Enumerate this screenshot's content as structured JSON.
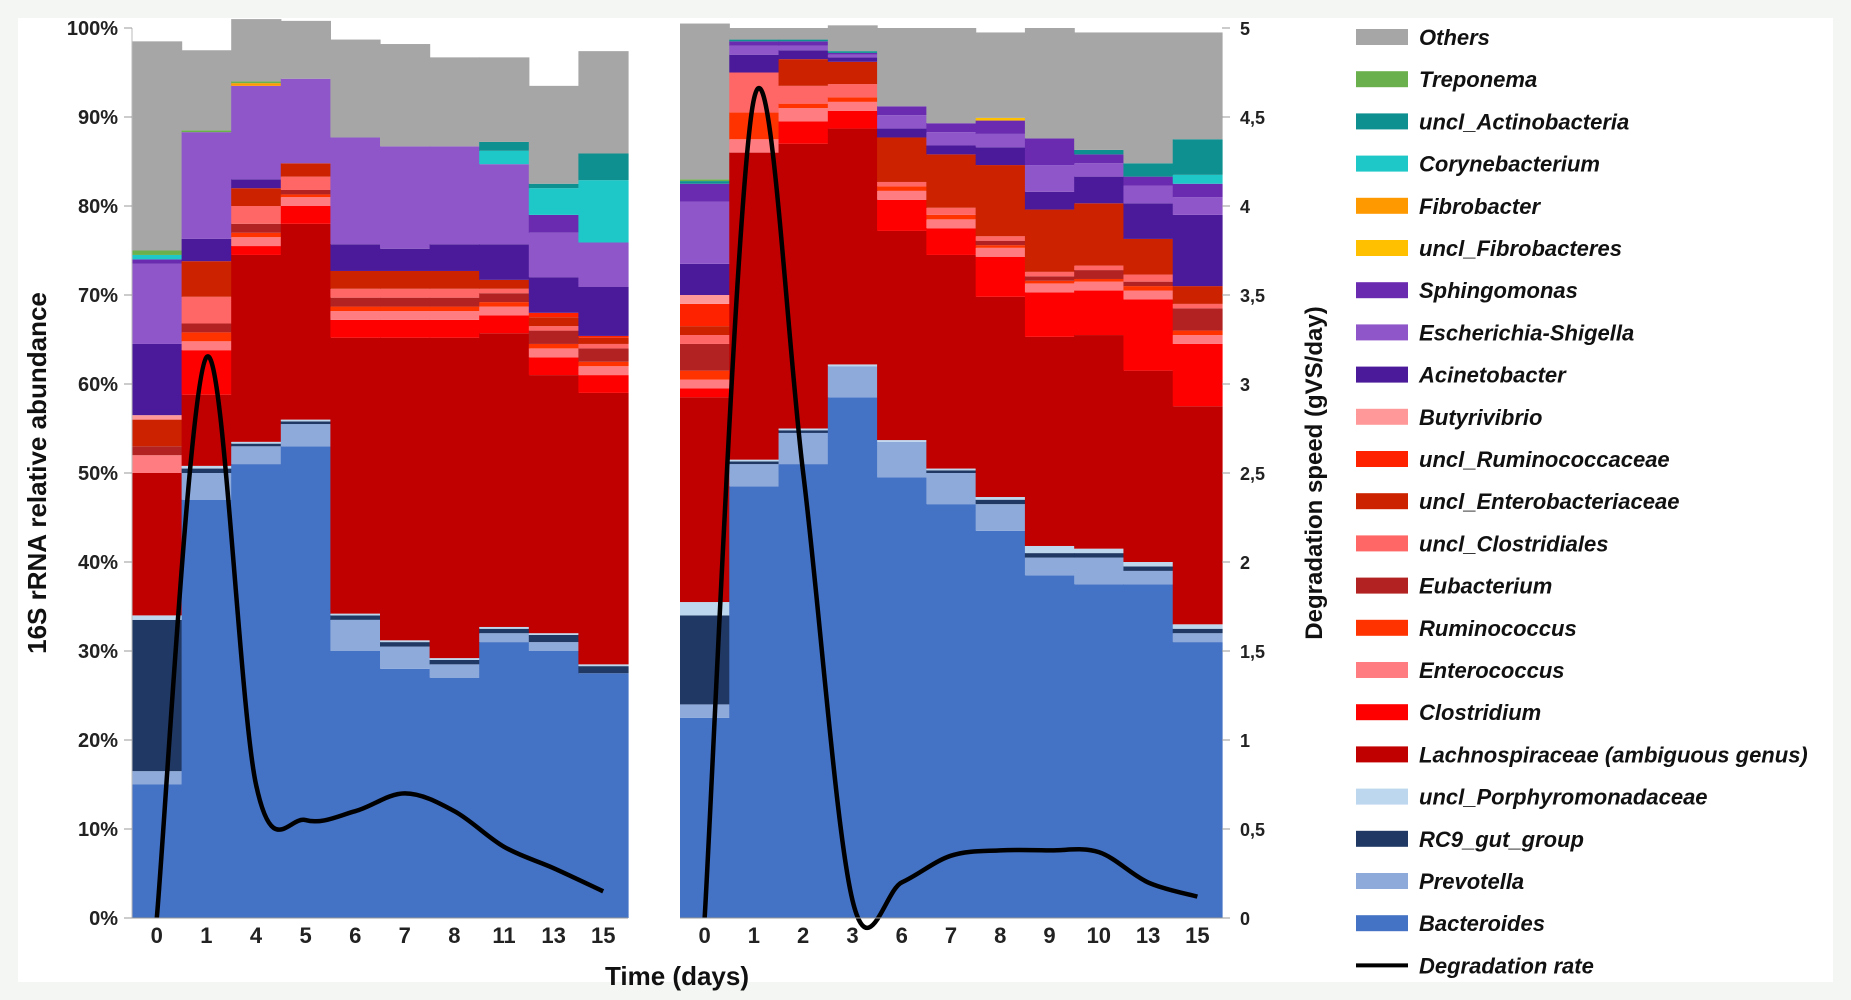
{
  "chart_data": {
    "type": "area",
    "subtype": "stacked-step-area with line overlay",
    "xlabel": "Time (days)",
    "ylabel": "16S rRNA relative abundance",
    "y2label": "Degradation speed (gVS/day)",
    "ylim": [
      0,
      100
    ],
    "y2lim": [
      0,
      5
    ],
    "yticks": [
      "0%",
      "10%",
      "20%",
      "30%",
      "40%",
      "50%",
      "60%",
      "70%",
      "80%",
      "90%",
      "100%"
    ],
    "y2ticks": [
      "0",
      "0,5",
      "1",
      "1,5",
      "2",
      "2,5",
      "3",
      "3,5",
      "4",
      "4,5",
      "5"
    ],
    "grid": false,
    "legend_position": "right",
    "colors": {
      "Bacteroides": "#4472c4",
      "Prevotella": "#8eaadb",
      "RC9_gut_group": "#1f3864",
      "uncl_Porphyromonadaceae": "#bdd7ee",
      "Lachnospiraceae (ambiguous genus)": "#c00000",
      "Clostridium": "#ff0000",
      "Enterococcus": "#ff7c80",
      "Ruminococcus": "#ff3300",
      "Eubacterium": "#b22222",
      "uncl_Clostridiales": "#ff6666",
      "uncl_Enterobacteriaceae": "#cc2200",
      "uncl_Ruminococcaceae": "#ff2200",
      "Butyrivibrio": "#ff9999",
      "Acinetobacter": "#4b1a9a",
      "Escherichia-Shigella": "#8e56c8",
      "Sphingomonas": "#6a2bb0",
      "uncl_Fibrobacteres": "#ffc000",
      "Fibrobacter": "#ff9900",
      "Corynebacterium": "#1ec8c8",
      "uncl_Actinobacteria": "#0e9090",
      "Treponema": "#6ab04c",
      "Others": "#a6a6a6",
      "Degradation rate": "#000000"
    },
    "legend": [
      "Others",
      "Treponema",
      "uncl_Actinobacteria",
      "Corynebacterium",
      "Fibrobacter",
      "uncl_Fibrobacteres",
      "Sphingomonas",
      "Escherichia-Shigella",
      "Acinetobacter",
      "Butyrivibrio",
      "uncl_Ruminococcaceae",
      "uncl_Enterobacteriaceae",
      "uncl_Clostridiales",
      "Eubacterium",
      "Ruminococcus",
      "Enterococcus",
      "Clostridium",
      "Lachnospiraceae (ambiguous genus)",
      "uncl_Porphyromonadaceae",
      "RC9_gut_group",
      "Prevotella",
      "Bacteroides",
      "Degradation rate"
    ],
    "panels": [
      {
        "categories": [
          "0",
          "1",
          "4",
          "5",
          "6",
          "7",
          "8",
          "11",
          "13",
          "15"
        ],
        "series": [
          {
            "name": "Bacteroides",
            "values": [
              15,
              47,
              51,
              53,
              30,
              28,
              27,
              31,
              30,
              27.5
            ]
          },
          {
            "name": "Prevotella",
            "values": [
              1.5,
              3,
              2,
              2.5,
              3.5,
              2.5,
              1.5,
              1,
              1,
              0
            ]
          },
          {
            "name": "RC9_gut_group",
            "values": [
              17,
              0.5,
              0.3,
              0.3,
              0.5,
              0.5,
              0.5,
              0.5,
              0.8,
              0.8
            ]
          },
          {
            "name": "uncl_Porphyromonadaceae",
            "values": [
              0.5,
              0.3,
              0.2,
              0.2,
              0.2,
              0.2,
              0.2,
              0.2,
              0.2,
              0.2
            ]
          },
          {
            "name": "Lachnospiraceae (ambiguous genus)",
            "values": [
              16,
              8,
              21,
              22,
              31,
              34,
              36,
              33,
              29,
              30.5
            ]
          },
          {
            "name": "Clostridium",
            "values": [
              0,
              5,
              1,
              2,
              2,
              2,
              2,
              2,
              2,
              2
            ]
          },
          {
            "name": "Enterococcus",
            "values": [
              2,
              1,
              1,
              1,
              1,
              1,
              1,
              1,
              1,
              1
            ]
          },
          {
            "name": "Ruminococcus",
            "values": [
              0,
              1,
              0.5,
              0.3,
              0.5,
              0.5,
              0.5,
              0.5,
              0.5,
              0.5
            ]
          },
          {
            "name": "Eubacterium",
            "values": [
              1,
              1,
              1,
              0.5,
              1,
              1,
              1,
              1,
              1.5,
              1.5
            ]
          },
          {
            "name": "uncl_Clostridiales",
            "values": [
              0,
              3,
              2,
              1.5,
              1,
              1,
              1,
              0.5,
              0.5,
              0.5
            ]
          },
          {
            "name": "uncl_Enterobacteriaceae",
            "values": [
              3,
              4,
              2,
              1.5,
              2,
              2,
              2,
              1,
              1,
              0.7
            ]
          },
          {
            "name": "uncl_Ruminococcaceae",
            "values": [
              0,
              0,
              0,
              0,
              0,
              0,
              0,
              0,
              0.5,
              0.2
            ]
          },
          {
            "name": "Butyrivibrio",
            "values": [
              0.5,
              0,
              0,
              0,
              0,
              0,
              0,
              0,
              0,
              0
            ]
          },
          {
            "name": "Acinetobacter",
            "values": [
              8,
              2.5,
              1,
              0,
              3,
              2.5,
              3,
              4,
              4,
              5.5
            ]
          },
          {
            "name": "Escherichia-Shigella",
            "values": [
              9,
              12,
              10.5,
              9.5,
              12,
              11.5,
              11,
              9,
              5,
              5
            ]
          },
          {
            "name": "Sphingomonas",
            "values": [
              0.5,
              0,
              0,
              0,
              0,
              0,
              0,
              0,
              2,
              0
            ]
          },
          {
            "name": "uncl_Fibrobacteres",
            "values": [
              0,
              0,
              0,
              0,
              0,
              0,
              0,
              0,
              0,
              0
            ]
          },
          {
            "name": "Fibrobacter",
            "values": [
              0,
              0,
              0.3,
              0,
              0,
              0,
              0,
              0,
              0,
              0
            ]
          },
          {
            "name": "Corynebacterium",
            "values": [
              0.5,
              0,
              0,
              0,
              0,
              0,
              0,
              1.5,
              3,
              7
            ]
          },
          {
            "name": "uncl_Actinobacteria",
            "values": [
              0,
              0,
              0,
              0,
              0,
              0,
              0,
              1,
              0.5,
              3
            ]
          },
          {
            "name": "Treponema",
            "values": [
              0.5,
              0.2,
              0.2,
              0,
              0,
              0,
              0,
              0,
              0,
              0
            ]
          },
          {
            "name": "Others",
            "values": [
              23.5,
              9,
              7,
              6.5,
              11,
              11.5,
              10,
              9.5,
              11,
              11.5
            ]
          }
        ],
        "degradation_rate": [
          0,
          3.15,
          0.75,
          0.55,
          0.6,
          0.7,
          0.6,
          0.4,
          0.28,
          0.15
        ]
      },
      {
        "categories": [
          "0",
          "1",
          "2",
          "3",
          "6",
          "7",
          "8",
          "9",
          "10",
          "13",
          "15"
        ],
        "series": [
          {
            "name": "Bacteroides",
            "values": [
              22.5,
              48.5,
              51,
              58.5,
              49.5,
              46.5,
              43.5,
              38.5,
              37.5,
              37.5,
              31
            ]
          },
          {
            "name": "Prevotella",
            "values": [
              1.5,
              2.5,
              3.5,
              3.5,
              4,
              3.5,
              3,
              2,
              3,
              1.5,
              1
            ]
          },
          {
            "name": "RC9_gut_group",
            "values": [
              10,
              0.3,
              0.3,
              0,
              0,
              0.3,
              0.5,
              0.5,
              0.5,
              0.5,
              0.5
            ]
          },
          {
            "name": "uncl_Porphyromonadaceae",
            "values": [
              1.5,
              0.2,
              0.2,
              0.2,
              0.2,
              0.2,
              0.3,
              0.8,
              0.5,
              0.5,
              0.5
            ]
          },
          {
            "name": "Lachnospiraceae (ambiguous genus)",
            "values": [
              23,
              34.5,
              32,
              26.5,
              23.5,
              24,
              22.5,
              23.5,
              24,
              21.5,
              24.5
            ]
          },
          {
            "name": "Clostridium",
            "values": [
              1,
              0,
              2.5,
              2,
              3.5,
              3,
              4.5,
              5,
              5,
              8,
              7
            ]
          },
          {
            "name": "Enterococcus",
            "values": [
              1,
              1.5,
              1.5,
              1,
              1,
              1,
              1,
              1,
              1,
              1,
              1
            ]
          },
          {
            "name": "Ruminococcus",
            "values": [
              1,
              3,
              0.5,
              0.5,
              0.5,
              0.5,
              0.3,
              0.3,
              0.3,
              0.5,
              0.5
            ]
          },
          {
            "name": "Eubacterium",
            "values": [
              3,
              0,
              0,
              0,
              0,
              0,
              0.5,
              0.5,
              1,
              0.5,
              2.5
            ]
          },
          {
            "name": "uncl_Clostridiales",
            "values": [
              1,
              4.5,
              2,
              1.5,
              0.5,
              0.8,
              0.5,
              0.5,
              0.5,
              0.8,
              0.5
            ]
          },
          {
            "name": "uncl_Enterobacteriaceae",
            "values": [
              1,
              0,
              3,
              2.5,
              5,
              6,
              8,
              7,
              7,
              4,
              2
            ]
          },
          {
            "name": "uncl_Ruminococcaceae",
            "values": [
              2.5,
              0,
              0,
              0,
              0,
              0,
              0,
              0,
              0,
              0,
              0
            ]
          },
          {
            "name": "Butyrivibrio",
            "values": [
              1,
              0,
              0,
              0,
              0,
              0,
              0,
              0,
              0,
              0,
              0
            ]
          },
          {
            "name": "Acinetobacter",
            "values": [
              3.5,
              2,
              1,
              0.5,
              1,
              1,
              2,
              2,
              3,
              4,
              8
            ]
          },
          {
            "name": "Escherichia-Shigella",
            "values": [
              7,
              1,
              0.5,
              0.3,
              1.5,
              1.5,
              1.5,
              3,
              1.5,
              2,
              2
            ]
          },
          {
            "name": "Sphingomonas",
            "values": [
              2,
              0.5,
              0.5,
              0.2,
              1,
              1,
              1.5,
              3,
              1,
              1,
              1.5
            ]
          },
          {
            "name": "uncl_Fibrobacteres",
            "values": [
              0,
              0,
              0,
              0,
              0,
              0,
              0.3,
              0,
              0,
              0,
              0
            ]
          },
          {
            "name": "Fibrobacter",
            "values": [
              0,
              0,
              0,
              0,
              0,
              0,
              0,
              0,
              0,
              0,
              0
            ]
          },
          {
            "name": "Corynebacterium",
            "values": [
              0,
              0,
              0,
              0,
              0,
              0,
              0,
              0,
              0,
              0,
              1
            ]
          },
          {
            "name": "uncl_Actinobacteria",
            "values": [
              0.3,
              0.2,
              0.2,
              0.2,
              0,
              0,
              0,
              0,
              0.5,
              1.5,
              4
            ]
          },
          {
            "name": "Treponema",
            "values": [
              0.2,
              0,
              0,
              0,
              0,
              0,
              0,
              0,
              0,
              0,
              0
            ]
          },
          {
            "name": "Others",
            "values": [
              17.5,
              1.3,
              1.3,
              2.9,
              8.8,
              10.7,
              9.6,
              12.4,
              13.2,
              14.7,
              12
            ]
          }
        ],
        "degradation_rate": [
          0,
          4.6,
          2.5,
          0.1,
          0.2,
          0.35,
          0.38,
          0.38,
          0.37,
          0.2,
          0.12
        ]
      }
    ]
  }
}
